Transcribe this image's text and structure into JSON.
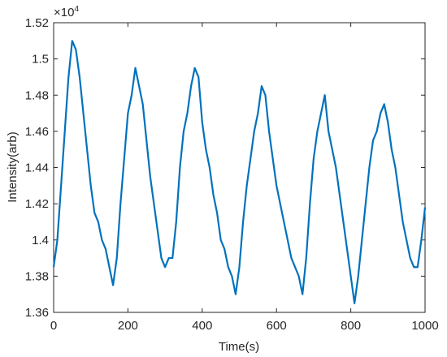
{
  "chart_data": {
    "type": "line",
    "x_label": "Time(s)",
    "y_label": "Intensity(arb)",
    "y_exponent_base": "×10",
    "y_exponent": "4",
    "xlim": [
      0,
      1000
    ],
    "xticks": [
      0,
      200,
      400,
      600,
      800,
      1000
    ],
    "ylim": [
      1.36,
      1.52
    ],
    "yticks": [
      1.36,
      1.38,
      1.4,
      1.42,
      1.44,
      1.46,
      1.48,
      1.5,
      1.52
    ],
    "x": [
      0,
      10,
      20,
      30,
      40,
      50,
      60,
      70,
      80,
      90,
      100,
      110,
      120,
      130,
      140,
      150,
      160,
      170,
      180,
      190,
      200,
      210,
      220,
      230,
      240,
      250,
      260,
      270,
      280,
      290,
      300,
      310,
      320,
      330,
      340,
      350,
      360,
      370,
      380,
      390,
      400,
      410,
      420,
      430,
      440,
      450,
      460,
      470,
      480,
      490,
      500,
      510,
      520,
      530,
      540,
      550,
      560,
      570,
      580,
      590,
      600,
      610,
      620,
      630,
      640,
      650,
      660,
      670,
      680,
      690,
      700,
      710,
      720,
      730,
      740,
      750,
      760,
      770,
      780,
      790,
      800,
      810,
      820,
      830,
      840,
      850,
      860,
      870,
      880,
      890,
      900,
      910,
      920,
      930,
      940,
      950,
      960,
      970,
      980,
      990,
      1000
    ],
    "series": [
      {
        "name": "Intensity",
        "color": "#0072bd",
        "values": [
          1.385,
          1.4,
          1.43,
          1.46,
          1.49,
          1.51,
          1.505,
          1.49,
          1.47,
          1.45,
          1.43,
          1.415,
          1.41,
          1.4,
          1.395,
          1.385,
          1.375,
          1.39,
          1.42,
          1.445,
          1.47,
          1.48,
          1.495,
          1.485,
          1.475,
          1.455,
          1.435,
          1.42,
          1.405,
          1.39,
          1.385,
          1.39,
          1.39,
          1.41,
          1.44,
          1.46,
          1.47,
          1.485,
          1.495,
          1.49,
          1.465,
          1.45,
          1.44,
          1.425,
          1.415,
          1.4,
          1.395,
          1.385,
          1.38,
          1.37,
          1.385,
          1.41,
          1.43,
          1.445,
          1.46,
          1.47,
          1.485,
          1.48,
          1.46,
          1.445,
          1.43,
          1.42,
          1.41,
          1.4,
          1.39,
          1.385,
          1.38,
          1.37,
          1.39,
          1.42,
          1.445,
          1.46,
          1.47,
          1.48,
          1.46,
          1.45,
          1.44,
          1.425,
          1.41,
          1.395,
          1.38,
          1.365,
          1.38,
          1.4,
          1.42,
          1.44,
          1.455,
          1.46,
          1.47,
          1.475,
          1.465,
          1.45,
          1.44,
          1.425,
          1.41,
          1.4,
          1.39,
          1.385,
          1.385,
          1.4,
          1.418
        ]
      }
    ]
  }
}
